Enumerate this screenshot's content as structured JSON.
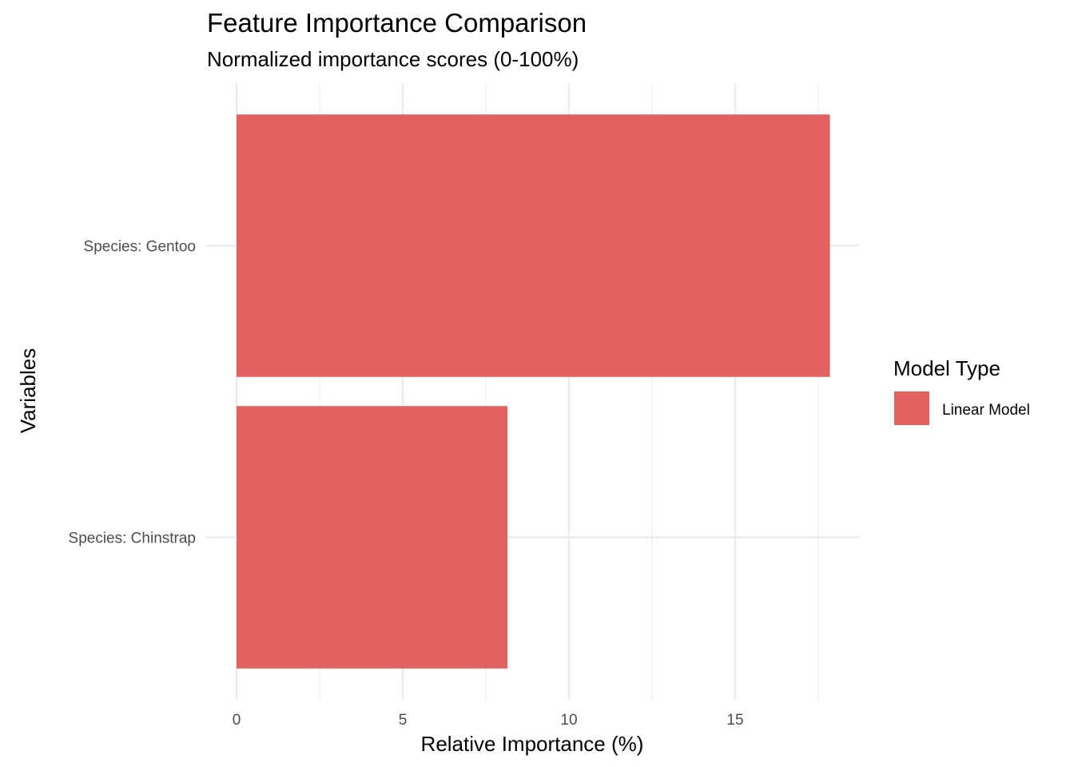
{
  "chart_data": {
    "type": "bar",
    "orientation": "horizontal",
    "title": "Feature Importance Comparison",
    "subtitle": "Normalized importance scores (0-100%)",
    "xlabel": "Relative Importance (%)",
    "ylabel": "Variables",
    "categories": [
      "Species: Gentoo",
      "Species: Chinstrap"
    ],
    "series": [
      {
        "name": "Linear Model",
        "values": [
          17.85,
          8.15
        ],
        "color": "#E05A57"
      }
    ],
    "x_ticks": [
      0,
      5,
      10,
      15
    ],
    "xlim": [
      0,
      18.75
    ],
    "grid": true,
    "legend": {
      "title": "Model Type",
      "position": "right"
    }
  }
}
